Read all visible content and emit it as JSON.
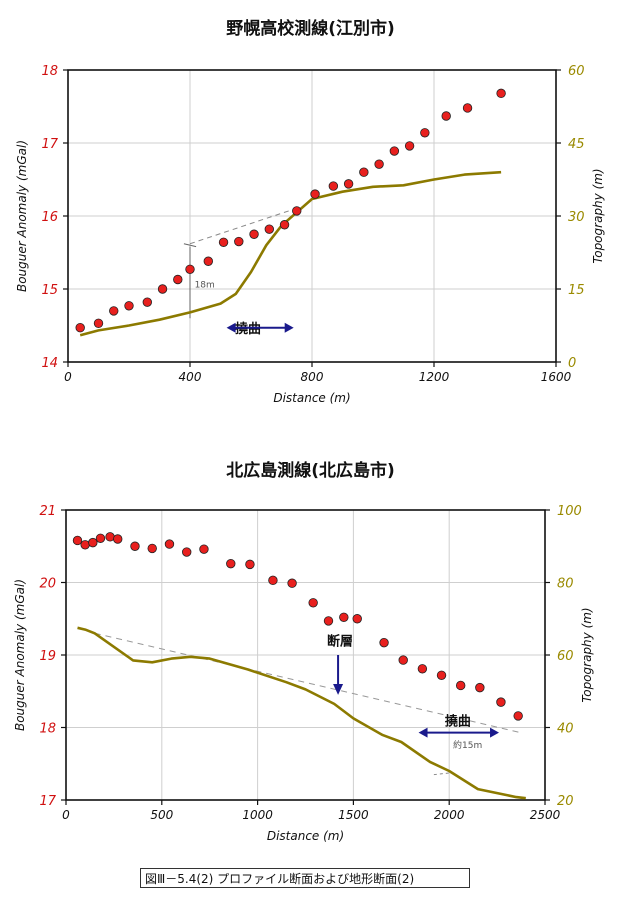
{
  "chart_data": [
    {
      "type": "scatter+line",
      "title": "野幌高校測線(江別市)",
      "xlabel": "Distance (m)",
      "ylabel": "Bouguer Anomaly (mGal)",
      "y2label": "Topography (m)",
      "xlim": [
        0,
        1600
      ],
      "ylim": [
        14,
        18
      ],
      "y2lim": [
        0,
        60
      ],
      "xticks": [
        "0",
        "400",
        "800",
        "1200",
        "1600"
      ],
      "yticks": [
        "14",
        "15",
        "16",
        "17",
        "18"
      ],
      "y2ticks": [
        "0",
        "15",
        "30",
        "45",
        "60"
      ],
      "grid": true,
      "gravity_points": {
        "x": [
          40,
          100,
          150,
          200,
          260,
          310,
          360,
          400,
          460,
          510,
          560,
          610,
          660,
          710,
          750,
          810,
          870,
          920,
          970,
          1020,
          1070,
          1120,
          1170,
          1240,
          1310,
          1420
        ],
        "y": [
          14.47,
          14.53,
          14.7,
          14.77,
          14.82,
          15.0,
          15.13,
          15.27,
          15.38,
          15.64,
          15.65,
          15.75,
          15.82,
          15.88,
          16.07,
          16.3,
          16.41,
          16.44,
          16.6,
          16.71,
          16.89,
          16.96,
          17.14,
          17.37,
          17.48,
          17.68
        ]
      },
      "topography_line": {
        "x": [
          40,
          100,
          200,
          300,
          400,
          500,
          550,
          600,
          650,
          700,
          800,
          900,
          1000,
          1100,
          1200,
          1300,
          1420
        ],
        "y": [
          5.5,
          6.5,
          7.5,
          8.7,
          10.2,
          12,
          14,
          18.5,
          24,
          28,
          33.5,
          35,
          36,
          36.3,
          37.5,
          38.5,
          39
        ]
      },
      "annotations": {
        "flexure_label": "撓曲",
        "step_note": "18m"
      }
    },
    {
      "type": "scatter+line",
      "title": "北広島測線(北広島市)",
      "xlabel": "Distance (m)",
      "ylabel": "Bouguer Anomaly (mGal)",
      "y2label": "Topography (m)",
      "xlim": [
        0,
        2500
      ],
      "ylim": [
        17,
        21
      ],
      "y2lim": [
        20,
        100
      ],
      "xticks": [
        "0",
        "500",
        "1000",
        "1500",
        "2000",
        "2500"
      ],
      "yticks": [
        "17",
        "18",
        "19",
        "20",
        "21"
      ],
      "y2ticks": [
        "20",
        "40",
        "60",
        "80",
        "100"
      ],
      "grid": true,
      "gravity_points": {
        "x": [
          60,
          100,
          140,
          180,
          230,
          270,
          360,
          450,
          540,
          630,
          720,
          860,
          960,
          1080,
          1180,
          1290,
          1370,
          1450,
          1520,
          1660,
          1760,
          1860,
          1960,
          2060,
          2160,
          2270,
          2360
        ],
        "y": [
          20.58,
          20.52,
          20.55,
          20.61,
          20.63,
          20.6,
          20.5,
          20.47,
          20.53,
          20.42,
          20.46,
          20.26,
          20.25,
          20.03,
          19.99,
          19.72,
          19.47,
          19.52,
          19.5,
          19.17,
          18.93,
          18.81,
          18.72,
          18.58,
          18.55,
          18.35,
          18.16
        ]
      },
      "topography_line": {
        "x": [
          60,
          100,
          150,
          350,
          450,
          550,
          650,
          750,
          950,
          1150,
          1250,
          1400,
          1500,
          1650,
          1750,
          1900,
          2000,
          2150,
          2350,
          2400
        ],
        "y": [
          67.5,
          67,
          66,
          58.5,
          58,
          59,
          59.5,
          59,
          56,
          52.5,
          50.5,
          46.5,
          42.5,
          38,
          36,
          30.5,
          28,
          23,
          20.8,
          20.5
        ]
      },
      "annotations": {
        "fault_label": "断層",
        "flexure_label": "撓曲",
        "step_note": "約15m"
      }
    }
  ],
  "caption": "図Ⅲ－5.4(2)  プロファイル断面および地形断面(2)",
  "colors": {
    "points": "#e8201e",
    "point_edge": "#222222",
    "topography": "#8c7a00",
    "left_axis_ticks": "#d01010",
    "right_axis_ticks": "#9a8a00",
    "grid": "#cfcfcf",
    "arrow": "#1a1a8c"
  }
}
